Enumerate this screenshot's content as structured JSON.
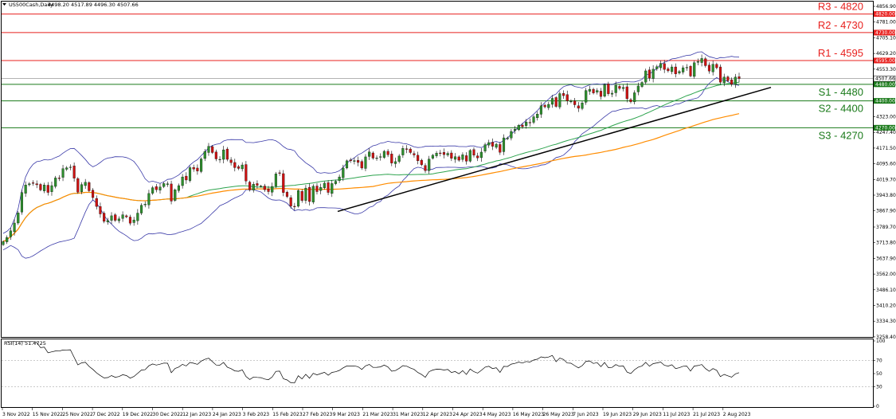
{
  "chart_data": {
    "type": "candlestick",
    "header": {
      "symbol": "US500Cash,Daily",
      "ohlc": "4498.20 4517.89 4496.30 4507.66"
    },
    "price_axis": {
      "min": 3258,
      "max": 4880,
      "ticks": [
        "4856.90",
        "4781.00",
        "4705.10",
        "4629.20",
        "4553.30",
        "4477.40",
        "4323.00",
        "4247.40",
        "4171.50",
        "4095.60",
        "4019.70",
        "3943.80",
        "3867.90",
        "3789.70",
        "3713.80",
        "3637.90",
        "3562.00",
        "3486.10",
        "3410.20",
        "3334.30",
        "3258.40"
      ],
      "current_price_label": "4507.66",
      "current_price": 4507.66
    },
    "time_axis": {
      "labels": [
        "3 Nov 2022",
        "15 Nov 2022",
        "25 Nov 2022",
        "7 Dec 2022",
        "19 Dec 2022",
        "30 Dec 2022",
        "12 Jan 2023",
        "24 Jan 2023",
        "3 Feb 2023",
        "15 Feb 2023",
        "27 Feb 2023",
        "9 Mar 2023",
        "21 Mar 2023",
        "31 Mar 2023",
        "12 Apr 2023",
        "24 Apr 2023",
        "4 May 2023",
        "16 May 2023",
        "26 May 2023",
        "7 Jun 2023",
        "19 Jun 2023",
        "29 Jun 2023",
        "11 Jul 2023",
        "21 Jul 2023",
        "2 Aug 2023"
      ]
    },
    "levels": [
      {
        "name": "R3 - 4820",
        "price": 4820,
        "tag": "4820.00",
        "color": "#e8201e",
        "tag_bg": "#e8201e"
      },
      {
        "name": "R2 - 4730",
        "price": 4730,
        "tag": "4730.00",
        "color": "#e8201e",
        "tag_bg": "#e8201e"
      },
      {
        "name": "R1 - 4595",
        "price": 4595,
        "tag": "4595.00",
        "color": "#e8201e",
        "tag_bg": "#e8201e"
      },
      {
        "name": "S1 - 4480",
        "price": 4480,
        "tag": "4480.00",
        "color": "#1a7a1a",
        "tag_bg": "#1a7a1a"
      },
      {
        "name": "S2 - 4400",
        "price": 4400,
        "tag": "4400.00",
        "color": "#1a7a1a",
        "tag_bg": "#1a7a1a"
      },
      {
        "name": "S3 - 4270",
        "price": 4270,
        "tag": "4270.00",
        "color": "#1a7a1a",
        "tag_bg": "#1a7a1a"
      }
    ],
    "trendline": {
      "start": {
        "date": "9 Mar 2023",
        "price": 3865
      },
      "end": {
        "date": "8 Aug 2023",
        "price": 4465
      },
      "color": "#000000"
    },
    "overlays": [
      {
        "kind": "bollinger_bands",
        "color": "#3a3aa8"
      },
      {
        "kind": "moving_average",
        "color": "#2ea44f"
      },
      {
        "kind": "moving_average",
        "color": "#ff8c00"
      }
    ],
    "candles": {
      "bull_color": "#2d8f2d",
      "bear_color": "#cc1111",
      "wick_color": "#000000"
    },
    "rsi": {
      "label": "RSI(14) 51.4725",
      "min": 0,
      "max": 100,
      "ticks": [
        "100",
        "70",
        "50",
        "30",
        "0"
      ],
      "last": 51.47,
      "color": "#000000"
    },
    "closes": [
      3719,
      3739,
      3771,
      3809,
      3858,
      3956,
      3993,
      3999,
      4001,
      3994,
      3969,
      3993,
      3957,
      3990,
      4027,
      4026,
      4072,
      4076,
      4080,
      4026,
      3958,
      3995,
      4006,
      3965,
      3932,
      3889,
      3853,
      3817,
      3821,
      3844,
      3822,
      3829,
      3849,
      3839,
      3808,
      3824,
      3857,
      3895,
      3900,
      3952,
      3980,
      3970,
      3983,
      4000,
      3999,
      3915,
      3970,
      3990,
      4032,
      4017,
      4077,
      4070,
      4060,
      4119,
      4155,
      4180,
      4150,
      4119,
      4117,
      4163,
      4117,
      4101,
      4077,
      4073,
      4090,
      4012,
      3969,
      3997,
      3991,
      3988,
      3970,
      3961,
      3986,
      4047,
      4050,
      3956,
      3937,
      3891,
      3887,
      3966,
      3918,
      3978,
      3913,
      3987,
      3961,
      3981,
      4002,
      3957,
      4000,
      4011,
      4032,
      4075,
      4110,
      4110,
      4111,
      4102,
      4075,
      4129,
      4153,
      4123,
      4124,
      4130,
      4156,
      4139,
      4099,
      4106,
      4133,
      4170,
      4165,
      4150,
      4138,
      4110,
      4091,
      4062,
      4118,
      4137,
      4147,
      4146,
      4140,
      4146,
      4122,
      4130,
      4113,
      4139,
      4108,
      4160,
      4137,
      4124,
      4152,
      4188,
      4198,
      4180,
      4190,
      4151,
      4221,
      4220,
      4252,
      4263,
      4282,
      4275,
      4298,
      4294,
      4323,
      4336,
      4376,
      4371,
      4383,
      4412,
      4373,
      4435,
      4425,
      4400,
      4398,
      4381,
      4364,
      4390,
      4450,
      4456,
      4438,
      4450,
      4421,
      4477,
      4434,
      4437,
      4475,
      4460,
      4465,
      4410,
      4395,
      4439,
      4472,
      4489,
      4545,
      4510,
      4553,
      4565,
      4581,
      4552,
      4545,
      4564,
      4530,
      4542,
      4560,
      4562,
      4520,
      4584,
      4590,
      4605,
      4570,
      4544,
      4577,
      4560,
      4490,
      4515,
      4497,
      4480,
      4515,
      4508
    ]
  }
}
